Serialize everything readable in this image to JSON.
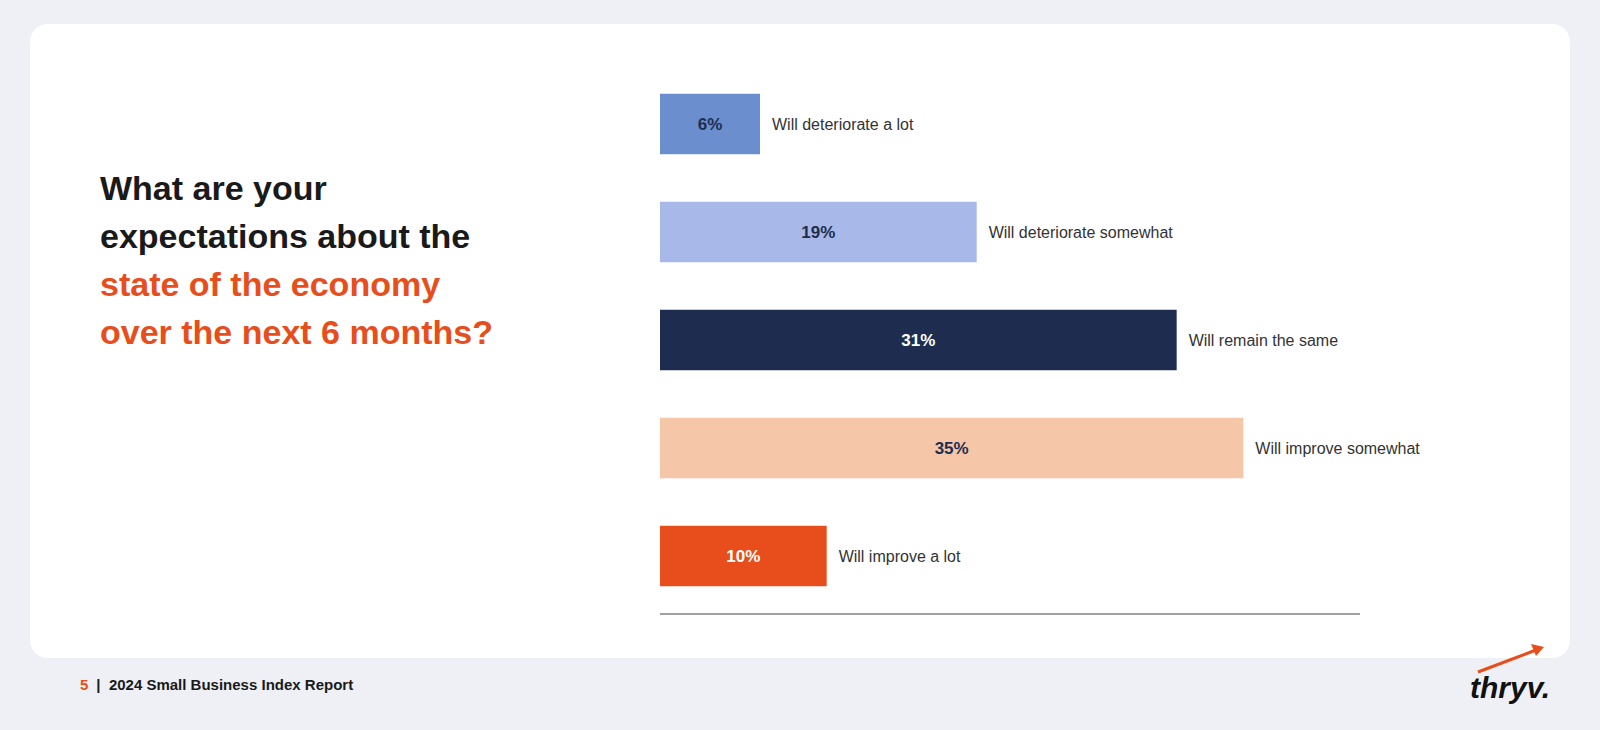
{
  "chart_data": {
    "type": "bar",
    "orientation": "horizontal",
    "title": "What are your\nexpectations about the",
    "subtitle": "state of the economy\nover the next 6 months?",
    "categories": [
      "Will deteriorate a lot",
      "Will deteriorate somewhat",
      "Will remain the same",
      "Will improve somewhat",
      "Will improve a lot"
    ],
    "values": [
      6,
      19,
      31,
      35,
      10
    ],
    "value_labels": [
      "6%",
      "19%",
      "31%",
      "35%",
      "10%"
    ],
    "colors": [
      "#6b8fce",
      "#a8b8e8",
      "#1e2d4f",
      "#f5c6a8",
      "#e84e1b"
    ],
    "xlim": [
      0,
      42
    ],
    "data_labels": true,
    "tick_labels": false,
    "grid": false,
    "annotations": [
      "5",
      "|  2024 Small Business Index Report",
      "thryv."
    ]
  }
}
